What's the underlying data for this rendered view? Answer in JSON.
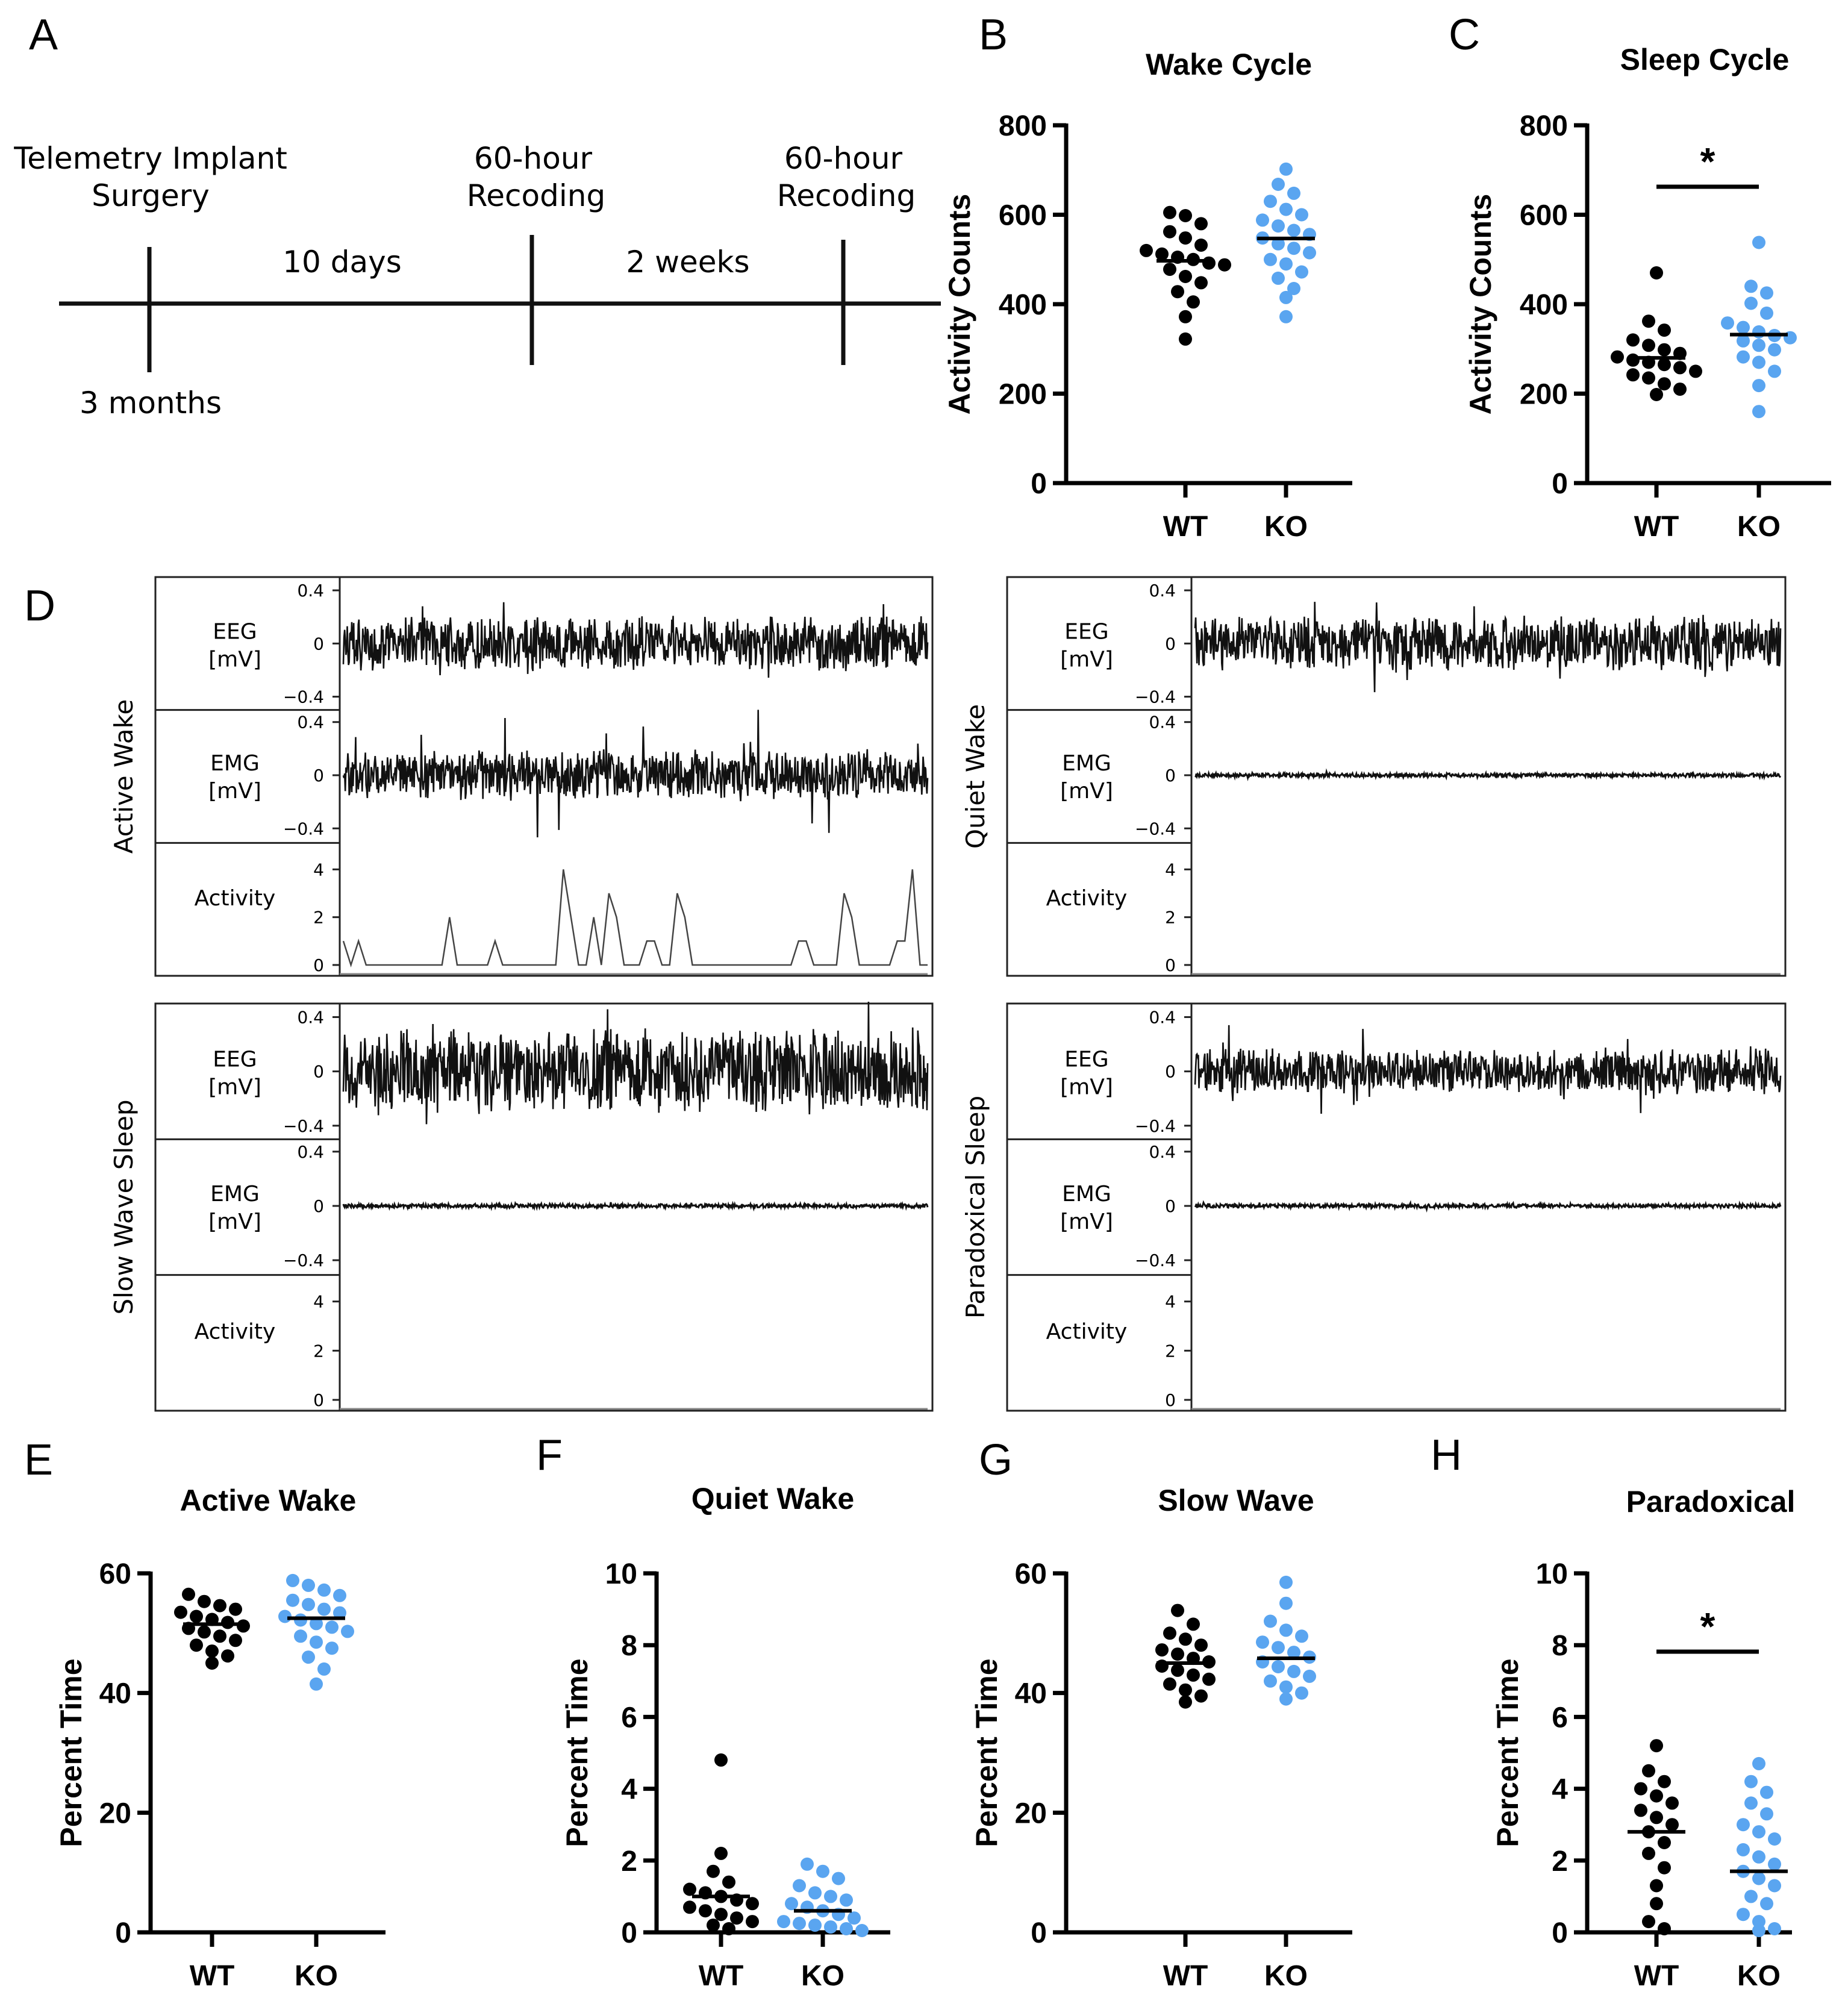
{
  "panel_letters": {
    "a": "A",
    "b": "B",
    "c": "C",
    "d": "D",
    "e": "E",
    "f": "F",
    "g": "G",
    "h": "H"
  },
  "timeline": {
    "events": [
      {
        "line1": "Telemetry Implant",
        "line2": "Surgery"
      },
      {
        "line1": "60-hour",
        "line2": "Recoding"
      },
      {
        "line1": "60-hour",
        "line2": "Recoding"
      }
    ],
    "intervals": [
      "10 days",
      "2 weeks"
    ],
    "start_label": "3 months"
  },
  "traces": {
    "panels": [
      {
        "state": "Active Wake",
        "eeg_level": 0.55,
        "emg_level": 0.5,
        "activity": [
          1,
          0,
          1,
          0,
          0,
          0,
          0,
          0,
          0,
          0,
          0,
          0,
          0,
          0,
          2,
          0,
          0,
          0,
          0,
          0,
          1,
          0,
          0,
          0,
          0,
          0,
          0,
          0,
          0,
          4,
          2,
          0,
          0,
          2,
          0,
          3,
          2,
          0,
          0,
          0,
          1,
          1,
          0,
          0,
          3,
          2,
          0,
          0,
          0,
          0,
          0,
          0,
          0,
          0,
          0,
          0,
          0,
          0,
          0,
          0,
          1,
          1,
          0,
          0,
          0,
          0,
          3,
          2,
          0,
          0,
          0,
          0,
          0,
          1,
          1,
          4,
          0,
          0
        ]
      },
      {
        "state": "Quiet Wake",
        "eeg_level": 0.55,
        "emg_level": 0.04,
        "activity": []
      },
      {
        "state": "Slow Wave Sleep",
        "eeg_level": 0.85,
        "emg_level": 0.04,
        "activity": []
      },
      {
        "state": "Paradoxical Sleep",
        "eeg_level": 0.45,
        "emg_level": 0.04,
        "activity": []
      }
    ],
    "channel_labels": {
      "eeg1": "EEG",
      "eeg2": "[mV]",
      "emg1": "EMG",
      "emg2": "[mV]",
      "activity": "Activity"
    },
    "mv_ticks": [
      "0.4",
      "0",
      "−0.4"
    ],
    "activity_ticks": [
      "4",
      "2",
      "0"
    ]
  },
  "chart_data": [
    {
      "panel": "B",
      "type": "scatter",
      "title": "Wake Cycle",
      "ylabel": "Activity Counts",
      "ylim": [
        0,
        800
      ],
      "yticks": [
        0,
        200,
        400,
        600,
        800
      ],
      "categories": [
        "WT",
        "KO"
      ],
      "significance": "",
      "series": [
        {
          "name": "WT",
          "color": "#000000",
          "mean": 497,
          "values": [
            322,
            372,
            405,
            428,
            448,
            462,
            478,
            488,
            492,
            500,
            505,
            512,
            520,
            532,
            548,
            562,
            580,
            598,
            605
          ]
        },
        {
          "name": "KO",
          "color": "#5aa5f0",
          "mean": 547,
          "values": [
            372,
            415,
            435,
            458,
            472,
            490,
            500,
            515,
            525,
            535,
            548,
            556,
            565,
            575,
            588,
            600,
            612,
            630,
            648,
            668,
            702
          ]
        }
      ]
    },
    {
      "panel": "C",
      "type": "scatter",
      "title": "Sleep Cycle",
      "ylabel": "Activity Counts",
      "ylim": [
        0,
        800
      ],
      "yticks": [
        0,
        200,
        400,
        600,
        800
      ],
      "categories": [
        "WT",
        "KO"
      ],
      "significance": "*",
      "series": [
        {
          "name": "WT",
          "color": "#000000",
          "mean": 280,
          "values": [
            198,
            210,
            222,
            235,
            242,
            250,
            258,
            265,
            270,
            275,
            282,
            290,
            298,
            308,
            320,
            342,
            362,
            470
          ]
        },
        {
          "name": "KO",
          "color": "#5aa5f0",
          "mean": 332,
          "values": [
            160,
            218,
            250,
            270,
            282,
            298,
            308,
            318,
            325,
            330,
            338,
            348,
            358,
            380,
            402,
            425,
            440,
            538
          ]
        }
      ]
    },
    {
      "panel": "E",
      "type": "scatter",
      "title": "Active Wake",
      "ylabel": "Percent Time",
      "ylim": [
        0,
        60
      ],
      "yticks": [
        0,
        20,
        40,
        60
      ],
      "categories": [
        "WT",
        "KO"
      ],
      "significance": "",
      "series": [
        {
          "name": "WT",
          "color": "#000000",
          "mean": 51.5,
          "values": [
            45.0,
            46.2,
            47.0,
            48.0,
            48.8,
            49.5,
            50.2,
            50.8,
            51.2,
            51.8,
            52.3,
            52.8,
            53.5,
            54.0,
            54.6,
            55.3,
            56.5
          ]
        },
        {
          "name": "KO",
          "color": "#5aa5f0",
          "mean": 52.5,
          "values": [
            41.5,
            44.0,
            46.0,
            47.5,
            48.5,
            49.5,
            50.3,
            51.0,
            51.6,
            52.2,
            52.8,
            53.4,
            54.0,
            54.8,
            55.5,
            56.3,
            57.2,
            58.0,
            58.8
          ]
        }
      ]
    },
    {
      "panel": "F",
      "type": "scatter",
      "title": "Quiet Wake",
      "ylabel": "Percent Time",
      "ylim": [
        0,
        10
      ],
      "yticks": [
        0,
        2,
        4,
        6,
        8,
        10
      ],
      "categories": [
        "WT",
        "KO"
      ],
      "significance": "",
      "series": [
        {
          "name": "WT",
          "color": "#000000",
          "mean": 1.0,
          "values": [
            0.1,
            0.2,
            0.3,
            0.4,
            0.5,
            0.6,
            0.7,
            0.8,
            0.9,
            1.0,
            1.1,
            1.2,
            1.4,
            1.7,
            2.2,
            4.8
          ]
        },
        {
          "name": "KO",
          "color": "#5aa5f0",
          "mean": 0.6,
          "values": [
            0.05,
            0.1,
            0.15,
            0.2,
            0.25,
            0.3,
            0.4,
            0.5,
            0.6,
            0.7,
            0.8,
            0.9,
            1.0,
            1.1,
            1.3,
            1.5,
            1.7,
            1.9
          ]
        }
      ]
    },
    {
      "panel": "G",
      "type": "scatter",
      "title": "Slow Wave",
      "ylabel": "Percent Time",
      "ylim": [
        0,
        60
      ],
      "yticks": [
        0,
        20,
        40,
        60
      ],
      "categories": [
        "WT",
        "KO"
      ],
      "significance": "",
      "series": [
        {
          "name": "WT",
          "color": "#000000",
          "mean": 45.0,
          "values": [
            38.5,
            39.5,
            40.5,
            41.5,
            42.3,
            43.0,
            43.8,
            44.5,
            45.2,
            45.8,
            46.5,
            47.2,
            48.0,
            49.0,
            50.0,
            51.5,
            53.8
          ]
        },
        {
          "name": "KO",
          "color": "#5aa5f0",
          "mean": 45.8,
          "values": [
            39.0,
            40.0,
            41.0,
            42.0,
            42.8,
            43.6,
            44.4,
            45.2,
            46.0,
            46.8,
            47.6,
            48.5,
            49.5,
            50.5,
            52.0,
            55.0,
            58.5
          ]
        }
      ]
    },
    {
      "panel": "H",
      "type": "scatter",
      "title": "Paradoxical",
      "ylabel": "Percent Time",
      "ylim": [
        0,
        10
      ],
      "yticks": [
        0,
        2,
        4,
        6,
        8,
        10
      ],
      "categories": [
        "WT",
        "KO"
      ],
      "significance": "*",
      "series": [
        {
          "name": "WT",
          "color": "#000000",
          "mean": 2.8,
          "values": [
            0.1,
            0.3,
            0.8,
            1.3,
            1.8,
            2.2,
            2.5,
            2.8,
            3.0,
            3.2,
            3.4,
            3.6,
            3.8,
            4.0,
            4.2,
            4.5,
            5.2
          ]
        },
        {
          "name": "KO",
          "color": "#5aa5f0",
          "mean": 1.7,
          "values": [
            0.05,
            0.1,
            0.3,
            0.5,
            0.8,
            1.0,
            1.3,
            1.5,
            1.7,
            1.9,
            2.1,
            2.3,
            2.6,
            2.8,
            3.0,
            3.3,
            3.6,
            3.9,
            4.2,
            4.7
          ]
        }
      ]
    }
  ]
}
